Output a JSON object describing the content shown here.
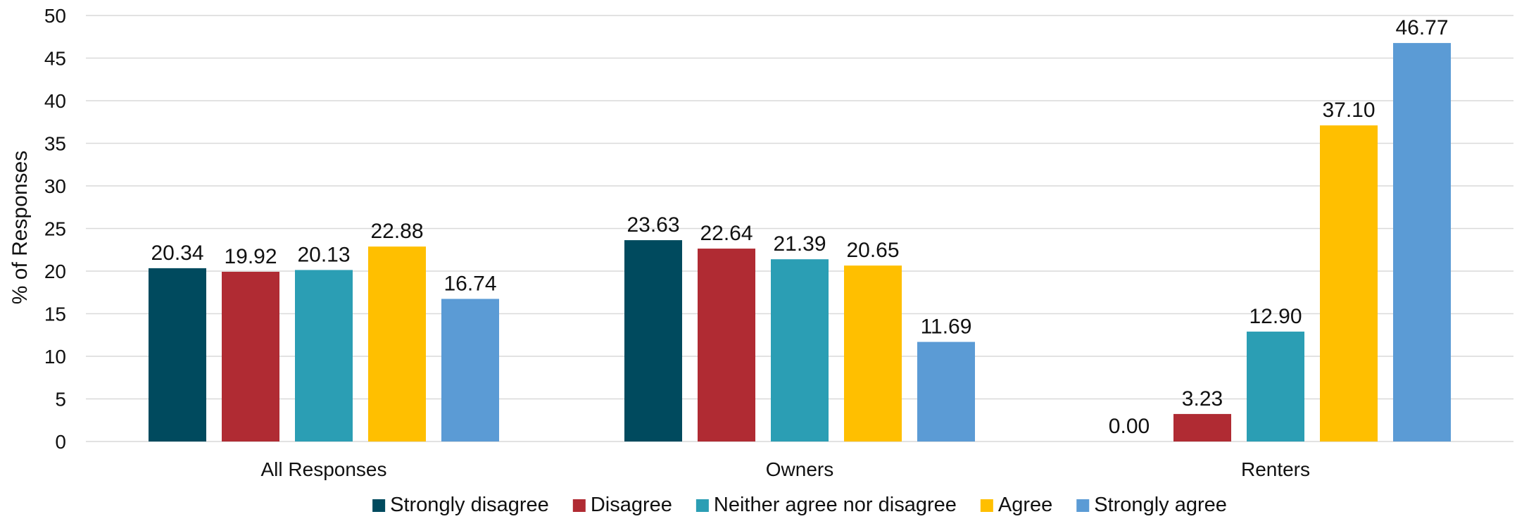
{
  "chart_data": {
    "type": "bar",
    "title": "",
    "xlabel": "",
    "ylabel": "% of Responses",
    "ylim": [
      0,
      50
    ],
    "yticks": [
      0,
      5,
      10,
      15,
      20,
      25,
      30,
      35,
      40,
      45,
      50
    ],
    "grid": true,
    "legend_position": "bottom",
    "categories": [
      "All Responses",
      "Owners",
      "Renters"
    ],
    "series": [
      {
        "name": "Strongly disagree",
        "color": "#004a5e",
        "values": [
          20.34,
          23.63,
          0.0
        ],
        "labels": [
          "20.34",
          "23.63",
          "0.00"
        ]
      },
      {
        "name": "Disagree",
        "color": "#b02b33",
        "values": [
          19.92,
          22.64,
          3.23
        ],
        "labels": [
          "19.92",
          "22.64",
          "3.23"
        ]
      },
      {
        "name": "Neither agree nor disagree",
        "color": "#2b9eb4",
        "values": [
          20.13,
          21.39,
          12.9
        ],
        "labels": [
          "20.13",
          "21.39",
          "12.90"
        ]
      },
      {
        "name": "Agree",
        "color": "#ffbf00",
        "values": [
          22.88,
          20.65,
          37.1
        ],
        "labels": [
          "22.88",
          "20.65",
          "37.10"
        ]
      },
      {
        "name": "Strongly agree",
        "color": "#5b9bd5",
        "values": [
          16.74,
          11.69,
          46.77
        ],
        "labels": [
          "16.74",
          "11.69",
          "46.77"
        ]
      }
    ]
  }
}
